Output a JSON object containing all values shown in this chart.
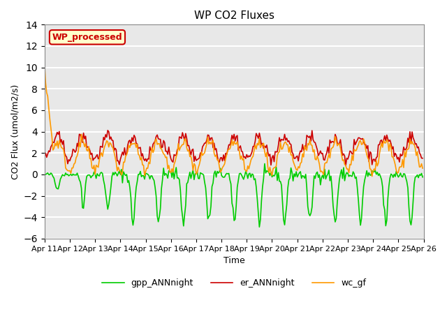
{
  "title": "WP CO2 Fluxes",
  "xlabel": "Time",
  "ylabel_display": "CO2 Flux (umol/m2/s)",
  "ylim": [
    -6,
    14
  ],
  "yticks": [
    -6,
    -4,
    -2,
    0,
    2,
    4,
    6,
    8,
    10,
    12,
    14
  ],
  "n_points": 360,
  "colors": {
    "gpp": "#00cc00",
    "er": "#cc0000",
    "wc": "#ff9900"
  },
  "legend_labels": [
    "gpp_ANNnight",
    "er_ANNnight",
    "wc_gf"
  ],
  "annotation_text": "WP_processed",
  "annotation_bg": "#ffffcc",
  "annotation_border": "#cc0000",
  "annotation_text_color": "#cc0000",
  "bg_color": "#e8e8e8",
  "x_tick_labels": [
    "Apr 11",
    "Apr 12",
    "Apr 13",
    "Apr 14",
    "Apr 15",
    "Apr 16",
    "Apr 17",
    "Apr 18",
    "Apr 19",
    "Apr 20",
    "Apr 21",
    "Apr 22",
    "Apr 23",
    "Apr 24",
    "Apr 25",
    "Apr 26"
  ],
  "grid_color": "white",
  "line_width": 1.2
}
